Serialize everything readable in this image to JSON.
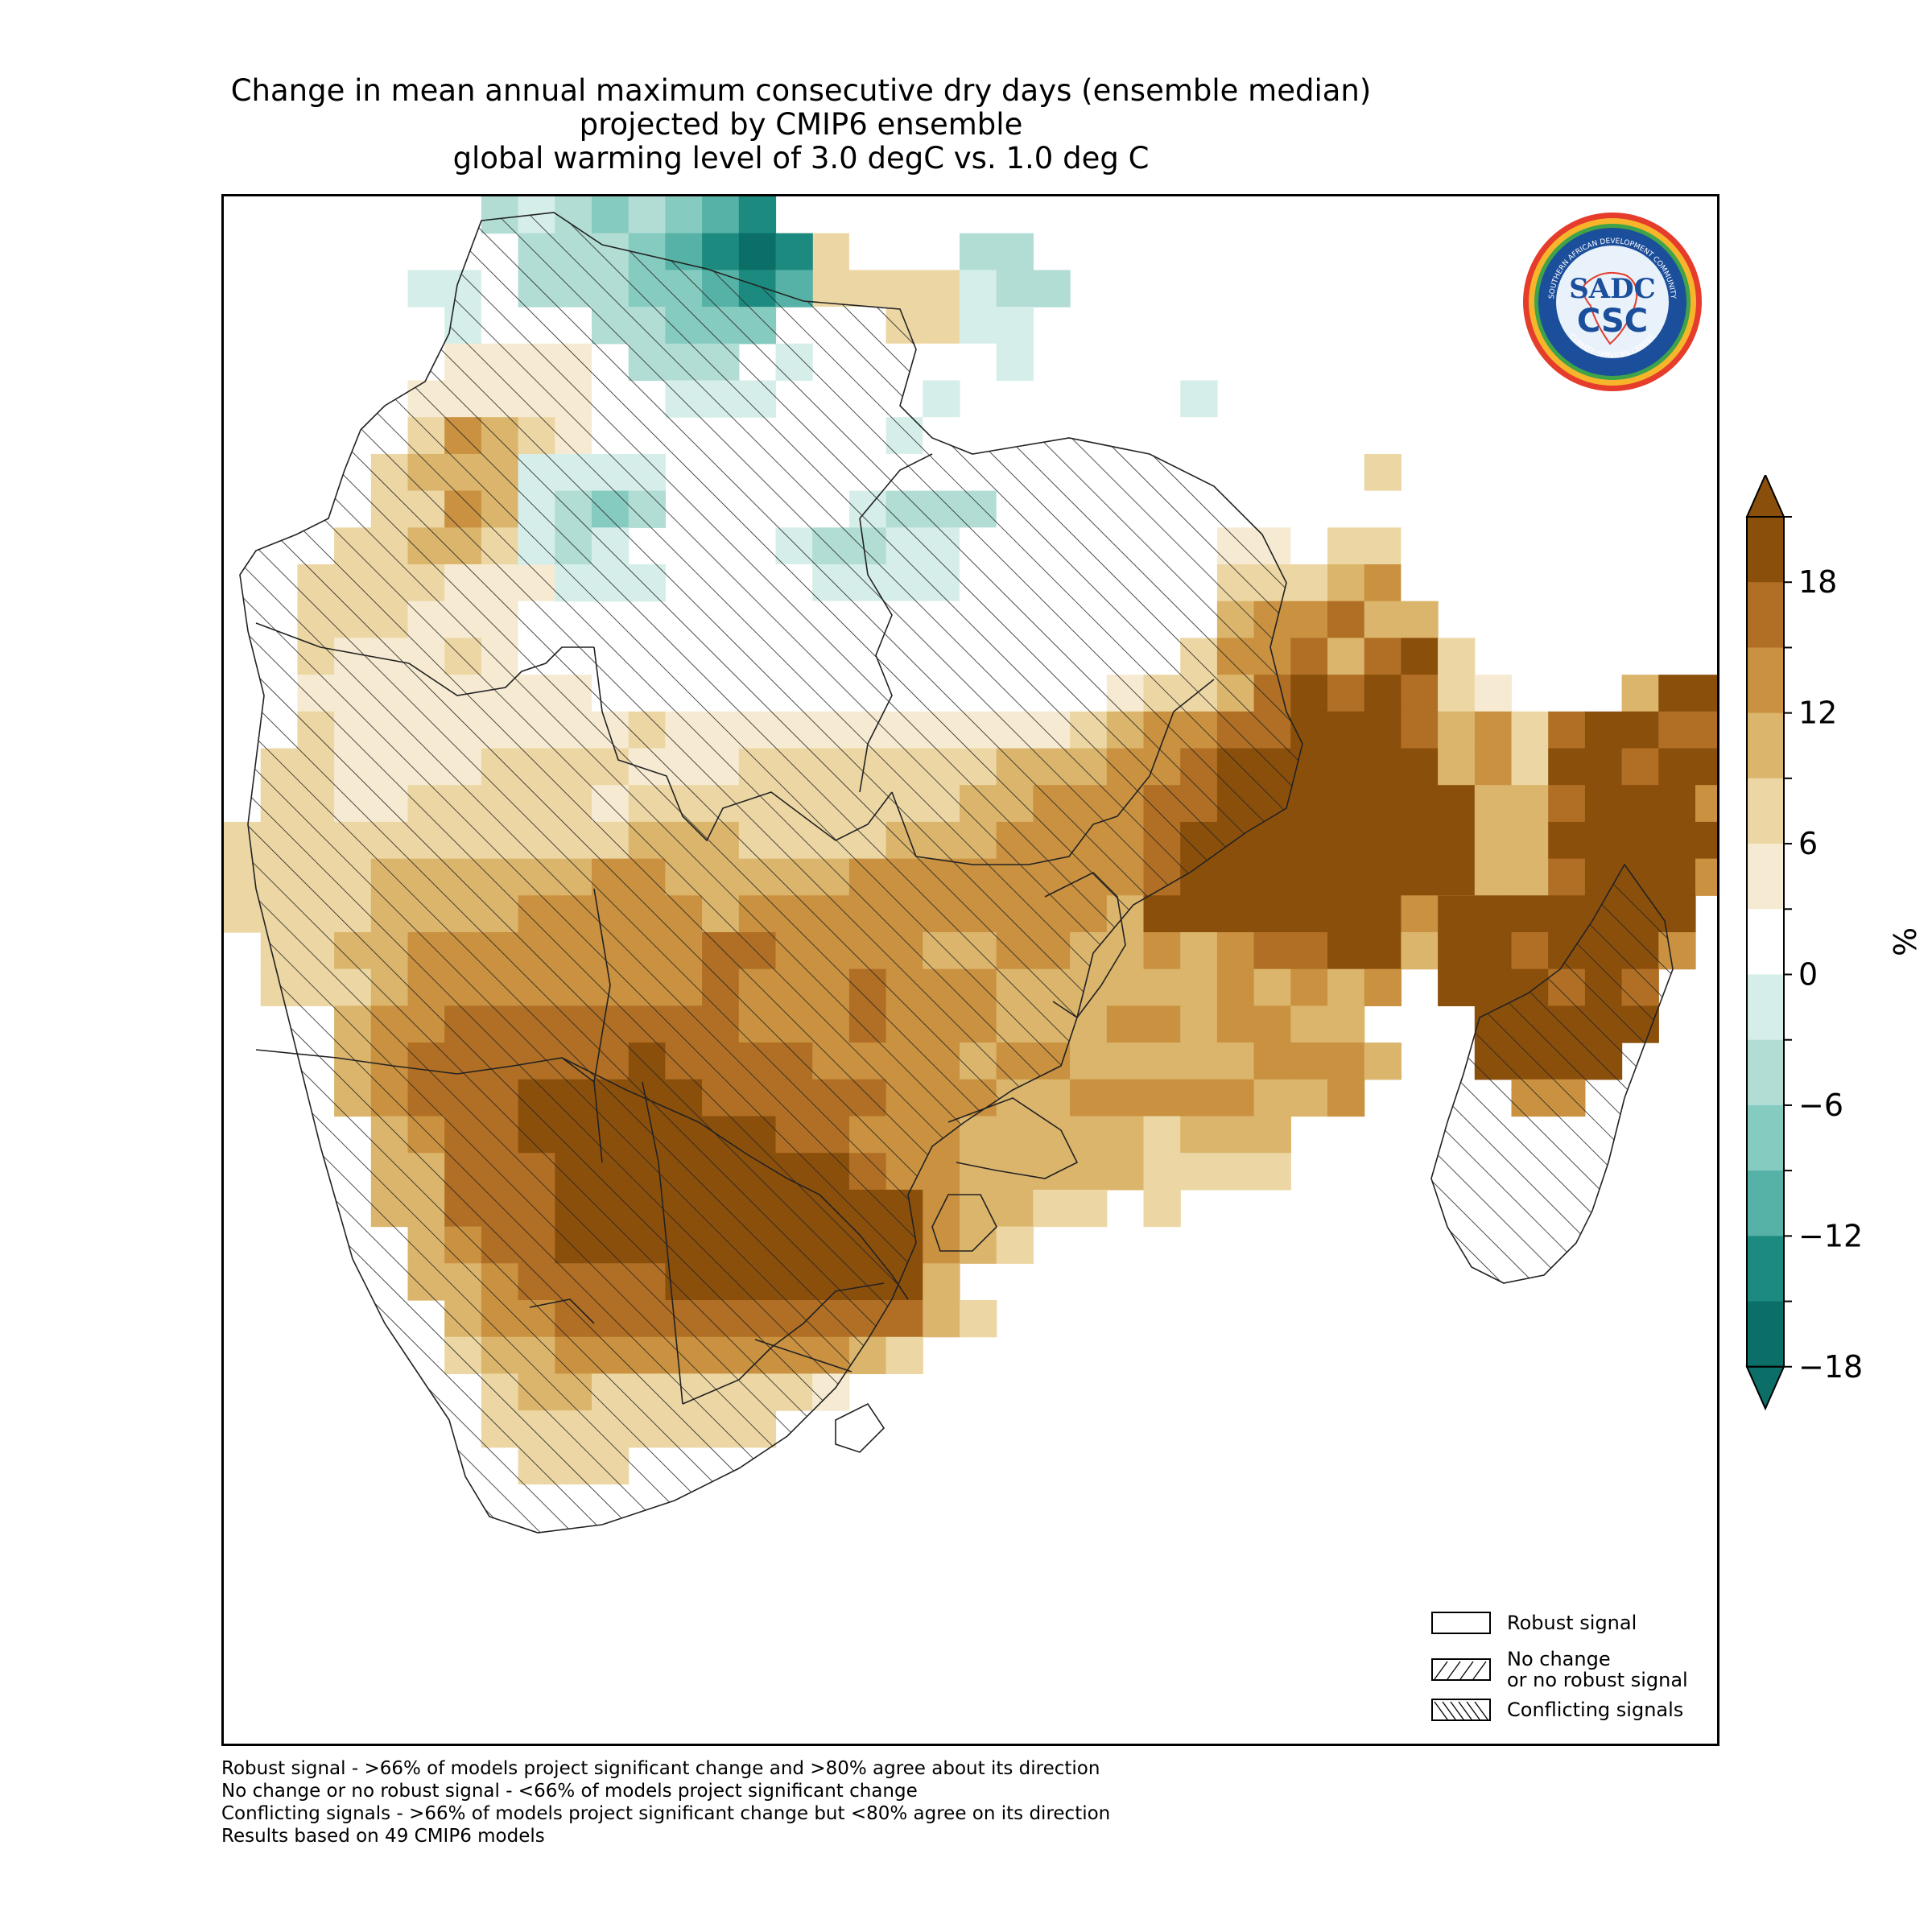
{
  "title": {
    "line1": "Change in mean annual maximum consecutive dry days (ensemble median)",
    "line2": "projected by CMIP6 ensemble",
    "line3": "global warming level of 3.0 degC vs. 1.0 deg C"
  },
  "logo": {
    "name": "SADC CSC",
    "ring_text_top": "SOUTHERN AFRICAN DEVELOPMENT COMMUNITY",
    "ring_text_bottom": "CLIMATE SERVICES CENTRE",
    "line1": "SADC",
    "line2": "CSC"
  },
  "colorbar": {
    "unit": "%",
    "ticks": [
      "18",
      "12",
      "6",
      "0",
      "−6",
      "−12",
      "−18"
    ],
    "colors": [
      "#0b6f68",
      "#1d8a80",
      "#56b2a6",
      "#86cbbf",
      "#b1ddd5",
      "#d6eeea",
      "#ffffff",
      "#f6ebd2",
      "#ecd7a4",
      "#dbb56c",
      "#c99140",
      "#b06f24",
      "#8b4f0c"
    ]
  },
  "legend": {
    "robust": "Robust signal",
    "no_change_line1": "No change",
    "no_change_line2": "or no robust signal",
    "conflicting": "Conflicting signals"
  },
  "footnotes": [
    "Robust signal - >66% of models project significant change and >80% agree about its direction",
    "No change or no robust signal - <66% of models project significant change",
    "Conflicting signals - >66% of models project significant change but <80% agree on its direction",
    "Results based on 49 CMIP6 models"
  ]
}
